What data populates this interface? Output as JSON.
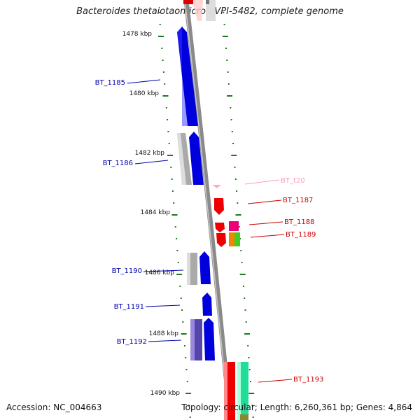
{
  "title": "Bacteroides thetaiotaomicron VPI-5482, complete genome",
  "accession": "Accession: NC_004663",
  "topology": "Topology: circular; Length: 6,260,361 bp; Genes: 4,864",
  "kbp_labels": [
    "1478 kbp",
    "1480 kbp",
    "1482 kbp",
    "1484 kbp",
    "1486 kbp",
    "1488 kbp",
    "1490 kbp"
  ],
  "genes": [
    {
      "name": "BT_1185",
      "strand": "minus",
      "color": "#0000cc"
    },
    {
      "name": "BT_1186",
      "strand": "minus",
      "color": "#0000cc"
    },
    {
      "name": "BT_t20",
      "strand": "plus",
      "color": "#ff99bb"
    },
    {
      "name": "BT_1187",
      "strand": "plus",
      "color": "#dd0000"
    },
    {
      "name": "BT_1188",
      "strand": "plus",
      "color": "#dd0000"
    },
    {
      "name": "BT_1189",
      "strand": "plus",
      "color": "#dd0000"
    },
    {
      "name": "BT_1190",
      "strand": "minus",
      "color": "#0000cc"
    },
    {
      "name": "BT_1191",
      "strand": "minus",
      "color": "#0000cc"
    },
    {
      "name": "BT_1192",
      "strand": "minus",
      "color": "#0000cc"
    },
    {
      "name": "BT_1193",
      "strand": "plus",
      "color": "#dd0000"
    }
  ],
  "colors": {
    "backbone": "#8a8a8a",
    "tick": "#1a7a1a",
    "minus_label": "#0000aa",
    "plus_label": "#cc0000",
    "trna_label": "#ff99bb"
  }
}
